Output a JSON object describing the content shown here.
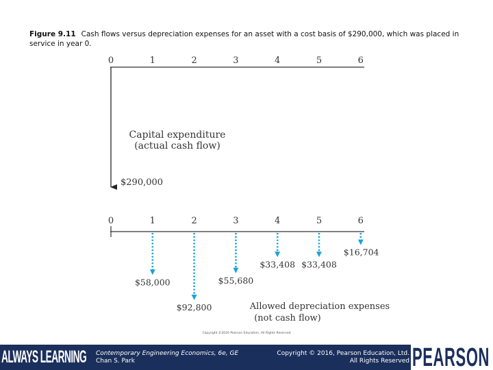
{
  "caption": {
    "label": "Figure 9.11",
    "text": "Cash flows versus depreciation expenses for an asset with a cost basis of $290,000, which was placed in service in year 0."
  },
  "top_diagram": {
    "years": [
      "0",
      "1",
      "2",
      "3",
      "4",
      "5",
      "6"
    ],
    "label_line1": "Capital expenditure",
    "label_line2": "(actual cash flow)",
    "amount_label": "$290,000",
    "amount_value": 290000
  },
  "bottom_diagram": {
    "years": [
      "0",
      "1",
      "2",
      "3",
      "4",
      "5",
      "6"
    ],
    "label_line1": "Allowed depreciation expenses",
    "label_line2": "(not cash flow)",
    "expenses": [
      {
        "year": 1,
        "value": 58000,
        "label": "$58,000"
      },
      {
        "year": 2,
        "value": 92800,
        "label": "$92,800"
      },
      {
        "year": 3,
        "value": 55680,
        "label": "$55,680"
      },
      {
        "year": 4,
        "value": 33408,
        "label": "$33,408"
      },
      {
        "year": 5,
        "value": 33408,
        "label": "$33,408"
      },
      {
        "year": 6,
        "value": 16704,
        "label": "$16,704"
      }
    ],
    "arrow_color": "#1aa3d8"
  },
  "image_copyright": "Copyright ©2016 Pearson Education, All Rights Reserved",
  "footer": {
    "brand_left": "ALWAYS LEARNING",
    "book_title": "Contemporary Engineering Economics, 6e, GE",
    "author": "Chan S. Park",
    "copyright_line1": "Copyright © 2016, Pearson Education, Ltd.",
    "copyright_line2": "All Rights Reserved",
    "brand_right": "PEARSON",
    "background_color": "#1b2f5c"
  }
}
